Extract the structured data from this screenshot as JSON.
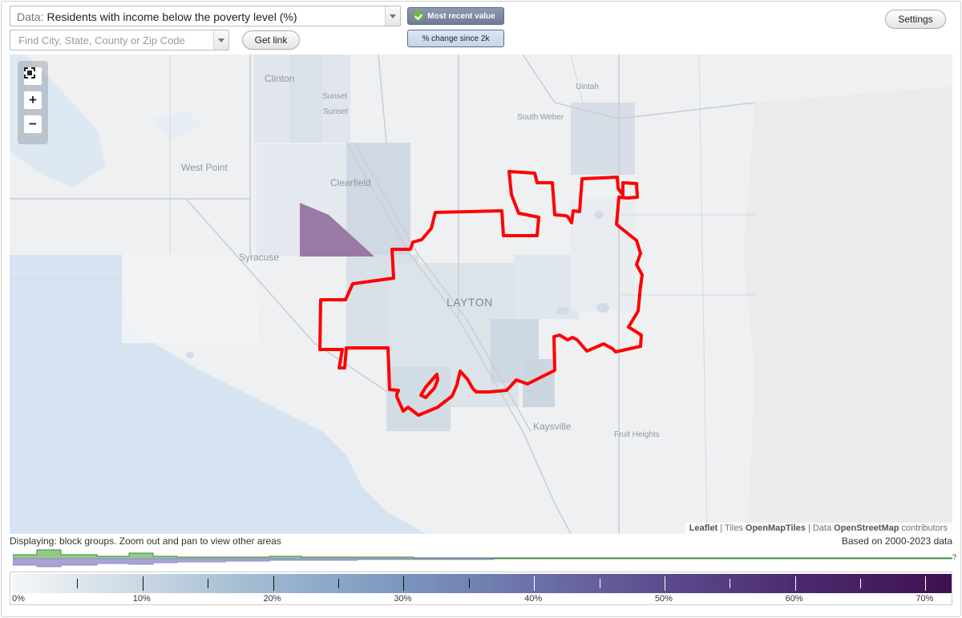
{
  "controls": {
    "data_prefix": "Data:",
    "data_value": "Residents with income below the poverty level (%)",
    "find_placeholder": "Find City, State, County or Zip Code",
    "get_link": "Get link",
    "toggle_recent": "Most recent value",
    "toggle_change": "% change since 2k",
    "settings": "Settings"
  },
  "map": {
    "labels": {
      "clinton": "Clinton",
      "sunset1": "Sunset",
      "sunset2": "Sunset",
      "uintah": "Uintah",
      "south_weber": "South Weber",
      "west_point": "West Point",
      "clearfield": "Clearfield",
      "syracuse": "Syracuse",
      "layton": "LAYTON",
      "kaysville": "Kaysville",
      "fruit_heights": "Fruit Heights"
    },
    "attribution": {
      "leaflet": "Leaflet",
      "sep1": "| Tiles",
      "tiles": "OpenMapTiles",
      "sep2": "| Data",
      "data": "OpenStreetMap",
      "contrib": "contributors"
    },
    "highlighted_area_color": "#ff0000"
  },
  "footer": {
    "displaying": "Displaying: block groups. Zoom out and pan to view other areas",
    "based_on": "Based on 2000-2023 data",
    "unknown_marker": "?"
  },
  "legend": {
    "ticks": [
      "0%",
      "10%",
      "20%",
      "30%",
      "40%",
      "50%",
      "60%",
      "70%"
    ],
    "range": [
      0,
      72
    ],
    "colors": {
      "low": "#f4f6f8",
      "high": "#3f1050"
    }
  },
  "histogram": {
    "series_colors": {
      "above": "#5fae5c",
      "below": "#8f88c8"
    }
  }
}
